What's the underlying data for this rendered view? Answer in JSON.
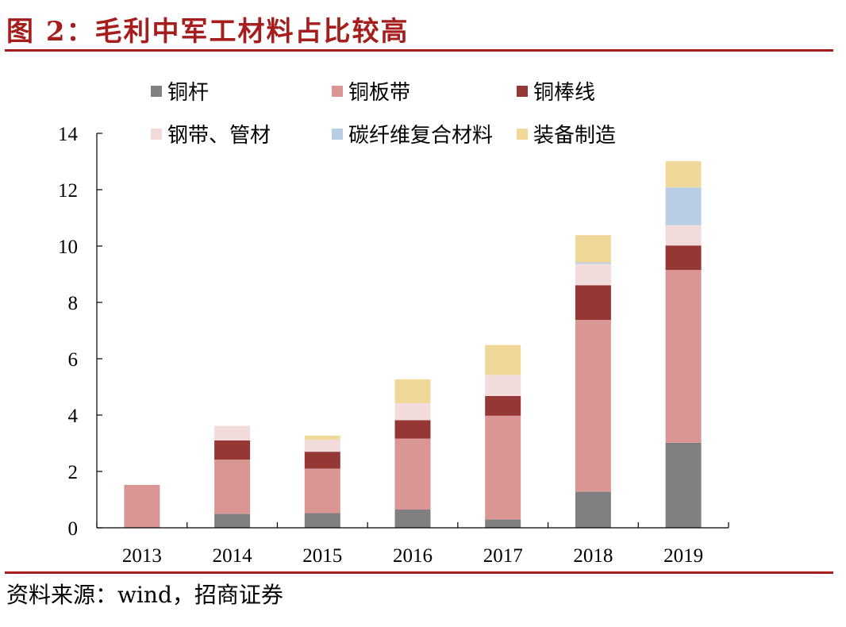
{
  "figure": {
    "title": "图 2：毛利中军工材料占比较高",
    "source": "资料来源：wind，招商证券"
  },
  "chart_data": {
    "type": "bar",
    "stacked": true,
    "categories": [
      "2013",
      "2014",
      "2015",
      "2016",
      "2017",
      "2018",
      "2019"
    ],
    "ylim": [
      0,
      14
    ],
    "yticks": [
      0,
      2,
      4,
      6,
      8,
      10,
      12,
      14
    ],
    "legend_position": "top",
    "series": [
      {
        "name": "铜杆",
        "color": "#808080",
        "values": [
          0,
          0.5,
          0.52,
          0.65,
          0.3,
          1.28,
          3.02
        ]
      },
      {
        "name": "铜板带",
        "color": "#da9694",
        "values": [
          1.52,
          1.92,
          1.58,
          2.52,
          3.68,
          6.1,
          6.13
        ]
      },
      {
        "name": "铜棒线",
        "color": "#953735",
        "values": [
          0,
          0.68,
          0.6,
          0.65,
          0.7,
          1.23,
          0.87
        ]
      },
      {
        "name": "钢带、管材",
        "color": "#f2dcdb",
        "values": [
          0,
          0.52,
          0.43,
          0.6,
          0.75,
          0.76,
          0.72
        ]
      },
      {
        "name": "碳纤维复合材料",
        "color": "#b9cde5",
        "values": [
          0,
          0,
          0,
          0,
          0,
          0.05,
          1.34
        ]
      },
      {
        "name": "装备制造",
        "color": "#f0d898",
        "values": [
          0,
          0,
          0.14,
          0.85,
          1.06,
          0.97,
          0.93
        ]
      }
    ]
  }
}
